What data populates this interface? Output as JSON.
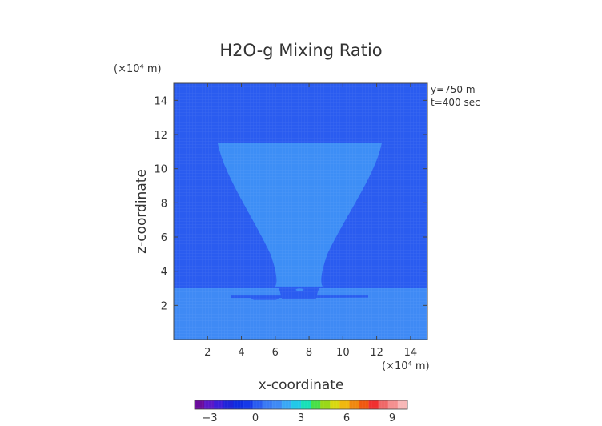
{
  "chart_data": {
    "type": "heatmap",
    "title": "H2O-g Mixing Ratio",
    "xlabel": "x-coordinate",
    "ylabel": "z-coordinate",
    "x_unit": "(×10⁴ m)",
    "y_unit": "(×10⁴ m)",
    "xlim": [
      0,
      15
    ],
    "ylim": [
      0,
      15
    ],
    "x_ticks": [
      2,
      4,
      6,
      8,
      10,
      12,
      14
    ],
    "y_ticks": [
      2,
      4,
      6,
      8,
      10,
      12,
      14
    ],
    "annotations": [
      "y=750 m",
      "t=400 sec"
    ],
    "fields": {
      "background_upper": {
        "z_range": [
          3.0,
          15
        ],
        "color": "#2a5cf0"
      },
      "lower_layer": {
        "z_range": [
          0,
          3.0
        ],
        "color": "#3f8af5"
      },
      "plume": {
        "color": "#3d8ef6",
        "top_z": 11.5,
        "top_x_range": [
          2.6,
          12.3
        ],
        "neck_z": 3.1,
        "neck_x_range": [
          6.0,
          8.8
        ]
      },
      "shelf": {
        "z": 2.5,
        "x_range": [
          3.4,
          11.5
        ],
        "color": "#2a5cf0"
      }
    },
    "colorbar": {
      "tick_labels": [
        "−3",
        "0",
        "3",
        "6",
        "9"
      ],
      "tick_values": [
        -3,
        0,
        3,
        6,
        9
      ],
      "range": [
        -4,
        10
      ],
      "colors": [
        "#6a0c9c",
        "#5a18c8",
        "#3c1ed8",
        "#1e24d8",
        "#0f2ce0",
        "#1638e8",
        "#2a5cf0",
        "#3a7af4",
        "#3f8af5",
        "#3aa8f6",
        "#22c8e8",
        "#18e0b8",
        "#48e048",
        "#9ad818",
        "#d8d810",
        "#f0b810",
        "#f08810",
        "#f05810",
        "#f03030",
        "#f06868",
        "#f49090",
        "#f8b8b8"
      ]
    }
  }
}
